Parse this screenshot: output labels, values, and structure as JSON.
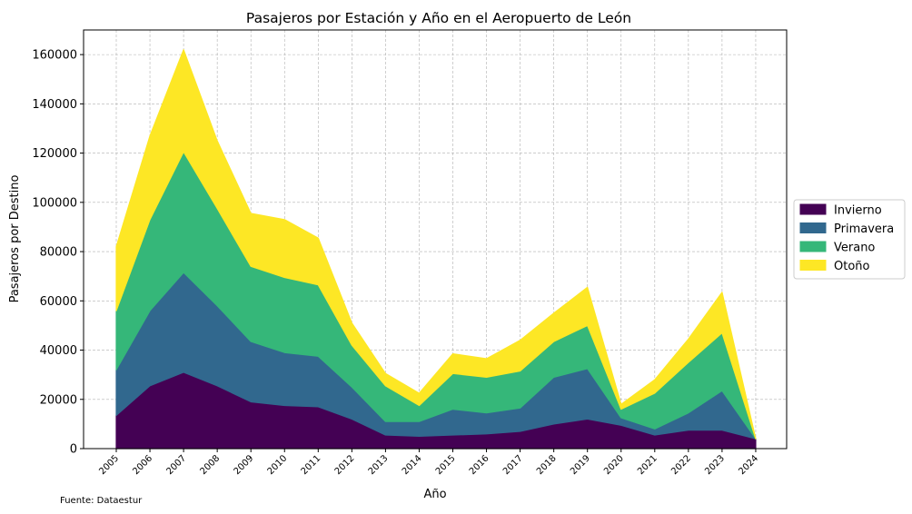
{
  "chart_data": {
    "type": "area",
    "stacked": true,
    "title": "Pasajeros por Estación y Año en el Aeropuerto de León",
    "xlabel": "Año",
    "ylabel": "Pasajeros por Destino",
    "source": "Fuente: Dataestur",
    "x": [
      "2005",
      "2006",
      "2007",
      "2008",
      "2009",
      "2010",
      "2011",
      "2012",
      "2013",
      "2014",
      "2015",
      "2016",
      "2017",
      "2018",
      "2019",
      "2020",
      "2021",
      "2022",
      "2023",
      "2024"
    ],
    "ylim": [
      0,
      170000
    ],
    "yticks": [
      0,
      20000,
      40000,
      60000,
      80000,
      100000,
      120000,
      140000,
      160000
    ],
    "yticks_labels": [
      "0",
      "20000",
      "40000",
      "60000",
      "80000",
      "100000",
      "120000",
      "140000",
      "160000"
    ],
    "grid": true,
    "legend_position": "right-center",
    "series": [
      {
        "name": "Invierno",
        "color": "#440154",
        "values": [
          13500,
          25500,
          31000,
          25500,
          19000,
          17500,
          17000,
          12000,
          5500,
          5000,
          5500,
          6000,
          7000,
          10000,
          12000,
          9500,
          5500,
          7500,
          7500,
          4000
        ]
      },
      {
        "name": "Primavera",
        "color": "#31688e",
        "values": [
          18500,
          30500,
          40500,
          32500,
          24500,
          21500,
          20500,
          13000,
          5500,
          6000,
          10500,
          8500,
          9500,
          19000,
          20500,
          3000,
          2500,
          7000,
          16000,
          0
        ]
      },
      {
        "name": "Verano",
        "color": "#35b779",
        "values": [
          24000,
          37000,
          49000,
          39500,
          30500,
          30500,
          29000,
          17000,
          14500,
          6500,
          14500,
          14500,
          15000,
          14500,
          17500,
          3500,
          14500,
          20500,
          23500,
          0
        ]
      },
      {
        "name": "Otoño",
        "color": "#fde725",
        "values": [
          26000,
          34000,
          41500,
          27500,
          21500,
          23500,
          19000,
          9000,
          5000,
          5000,
          8000,
          7500,
          12500,
          11500,
          15500,
          2000,
          5500,
          9500,
          16500,
          0
        ]
      }
    ]
  }
}
